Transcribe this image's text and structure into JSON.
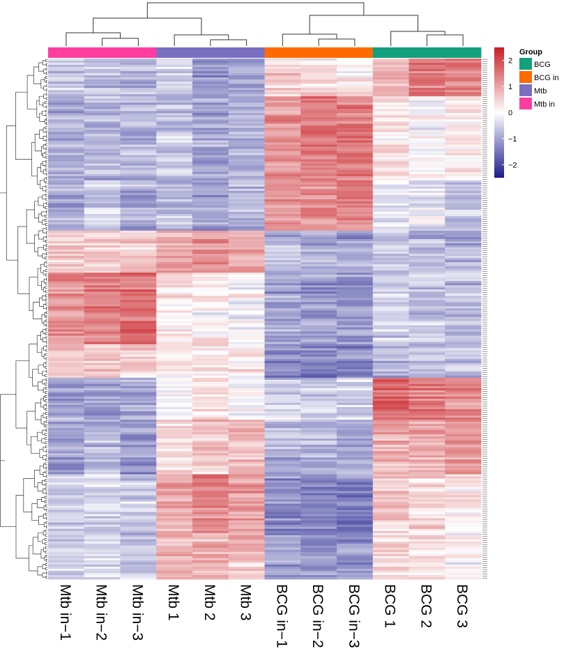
{
  "chart_data": {
    "type": "heatmap",
    "columns": [
      "Mtb in−1",
      "Mtb in−2",
      "Mtb in−3",
      "Mtb 1",
      "Mtb 2",
      "Mtb 3",
      "BCG in−1",
      "BCG in−2",
      "BCG in−3",
      "BCG 1",
      "BCG 2",
      "BCG 3"
    ],
    "column_groups": [
      "Mtb in",
      "Mtb in",
      "Mtb in",
      "Mtb",
      "Mtb",
      "Mtb",
      "BCG in",
      "BCG in",
      "BCG in",
      "BCG",
      "BCG",
      "BCG"
    ],
    "row_blocks": [
      {
        "rows": 18,
        "means": [
          -0.6,
          -0.8,
          -0.8,
          -0.5,
          -1.1,
          -1.0,
          0.5,
          0.4,
          0.2,
          0.8,
          1.4,
          1.3
        ]
      },
      {
        "rows": 40,
        "means": [
          -0.8,
          -0.7,
          -0.8,
          -0.6,
          -0.9,
          -0.8,
          1.2,
          1.5,
          1.5,
          0.3,
          0.0,
          0.3
        ]
      },
      {
        "rows": 24,
        "means": [
          -0.9,
          -0.6,
          -0.8,
          -0.8,
          -1.1,
          -0.9,
          1.2,
          1.2,
          1.4,
          -0.3,
          -0.2,
          -0.7
        ]
      },
      {
        "rows": 20,
        "means": [
          0.5,
          0.4,
          0.5,
          1.0,
          1.1,
          0.9,
          -0.8,
          -0.9,
          -1.1,
          -0.7,
          -0.8,
          -0.9
        ]
      },
      {
        "rows": 34,
        "means": [
          1.2,
          1.5,
          1.6,
          0.2,
          0.1,
          0.0,
          -1.0,
          -1.1,
          -1.1,
          -0.5,
          -0.7,
          -0.7
        ]
      },
      {
        "rows": 16,
        "means": [
          0.7,
          0.6,
          0.5,
          0.3,
          0.2,
          0.3,
          -1.3,
          -1.4,
          -1.3,
          -0.8,
          -0.8,
          -0.7
        ]
      },
      {
        "rows": 20,
        "means": [
          -1.0,
          -1.1,
          -0.9,
          0.0,
          0.3,
          -0.1,
          -0.5,
          -0.6,
          -0.4,
          1.7,
          1.4,
          1.2
        ]
      },
      {
        "rows": 26,
        "means": [
          -1.0,
          -0.8,
          -1.1,
          0.4,
          0.6,
          0.7,
          -0.8,
          -0.7,
          -0.9,
          0.9,
          0.9,
          1.2
        ]
      },
      {
        "rows": 28,
        "means": [
          -0.6,
          -0.5,
          -0.5,
          0.9,
          1.3,
          1.1,
          -1.2,
          -1.3,
          -1.4,
          0.6,
          0.5,
          0.3
        ]
      },
      {
        "rows": 22,
        "means": [
          -0.5,
          -0.4,
          -0.6,
          0.8,
          0.9,
          0.7,
          -1.0,
          -1.2,
          -1.1,
          0.3,
          0.2,
          0.0
        ]
      }
    ],
    "color_scale": {
      "min": -2.5,
      "max": 2.5,
      "ticks": [
        "2",
        "1",
        "0",
        "−1",
        "−2"
      ],
      "tick_values": [
        2,
        1,
        0,
        -1,
        -2
      ],
      "low_color": "#1a1a8c",
      "mid_color": "#ffffff",
      "high_color": "#c81e23"
    },
    "legend": {
      "title": "Group",
      "items": [
        {
          "label": "BCG",
          "color": "#12a07c"
        },
        {
          "label": "BCG in",
          "color": "#ff6a00"
        },
        {
          "label": "Mtb",
          "color": "#7b6fc1"
        },
        {
          "label": "Mtb in",
          "color": "#ff3da0"
        }
      ]
    }
  }
}
